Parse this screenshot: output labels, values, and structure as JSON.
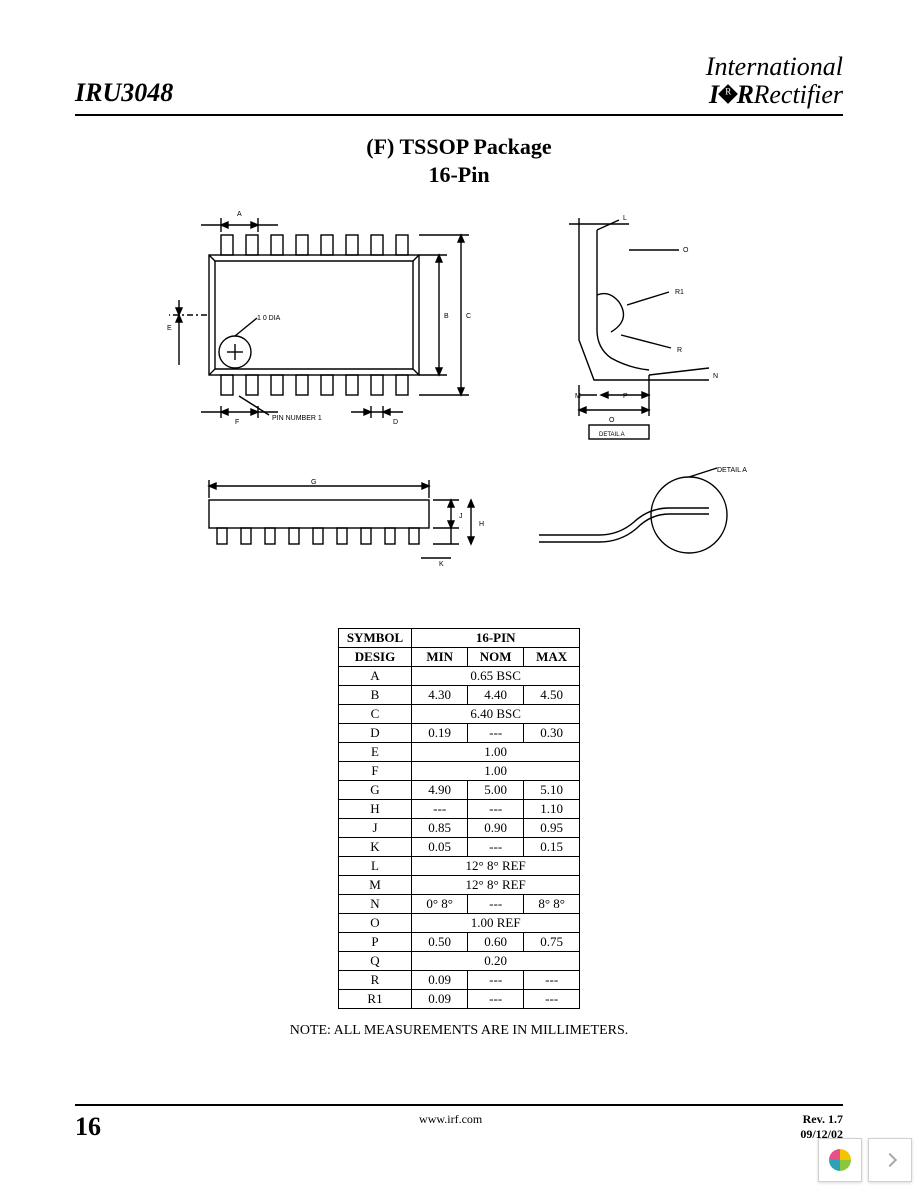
{
  "header": {
    "part_number": "IRU3048",
    "brand_line1": "International",
    "brand_prefix": "I",
    "brand_suffix": "R",
    "brand_line2_rest": "Rectifier"
  },
  "title": {
    "line1": "(F) TSSOP Package",
    "line2": "16-Pin"
  },
  "diagram": {
    "labels": {
      "pin1_dia": "1 0 DIA",
      "pin_number_1": "PIN NUMBER 1",
      "detail_a_box": "DETAIL A",
      "detail_a_callout": "DETAIL A",
      "A": "A",
      "B": "B",
      "C": "C",
      "D": "D",
      "E": "E",
      "F": "F",
      "G": "G",
      "H": "H",
      "J": "J",
      "K": "K",
      "L": "L",
      "M": "M",
      "N": "N",
      "O": "O",
      "P": "P",
      "R": "R",
      "R1": "R1"
    },
    "stroke_color": "#000000",
    "bg_color": "#ffffff"
  },
  "table": {
    "header_group": "16-PIN",
    "col_symbol_1": "SYMBOL",
    "col_symbol_2": "DESIG",
    "col_min": "MIN",
    "col_nom": "NOM",
    "col_max": "MAX",
    "rows": [
      {
        "sym": "A",
        "span": "0.65 BSC"
      },
      {
        "sym": "B",
        "min": "4.30",
        "nom": "4.40",
        "max": "4.50"
      },
      {
        "sym": "C",
        "span": "6.40 BSC"
      },
      {
        "sym": "D",
        "min": "0.19",
        "nom": "---",
        "max": "0.30"
      },
      {
        "sym": "E",
        "span": "1.00"
      },
      {
        "sym": "F",
        "span": "1.00"
      },
      {
        "sym": "G",
        "min": "4.90",
        "nom": "5.00",
        "max": "5.10"
      },
      {
        "sym": "H",
        "min": "---",
        "nom": "---",
        "max": "1.10"
      },
      {
        "sym": "J",
        "min": "0.85",
        "nom": "0.90",
        "max": "0.95"
      },
      {
        "sym": "K",
        "min": "0.05",
        "nom": "---",
        "max": "0.15"
      },
      {
        "sym": "L",
        "span": "12° 8° REF"
      },
      {
        "sym": "M",
        "span": "12° 8° REF"
      },
      {
        "sym": "N",
        "min": "0° 8°",
        "nom": "---",
        "max": "8° 8°"
      },
      {
        "sym": "O",
        "span": "1.00 REF"
      },
      {
        "sym": "P",
        "min": "0.50",
        "nom": "0.60",
        "max": "0.75"
      },
      {
        "sym": "Q",
        "span": "0.20"
      },
      {
        "sym": "R",
        "min": "0.09",
        "nom": "---",
        "max": "---"
      },
      {
        "sym": "R1",
        "min": "0.09",
        "nom": "---",
        "max": "---"
      }
    ]
  },
  "note": "NOTE: ALL MEASUREMENTS ARE IN MILLIMETERS.",
  "footer": {
    "page_number": "16",
    "url": "www.irf.com",
    "rev": "Rev. 1.7",
    "date": "09/12/02"
  }
}
